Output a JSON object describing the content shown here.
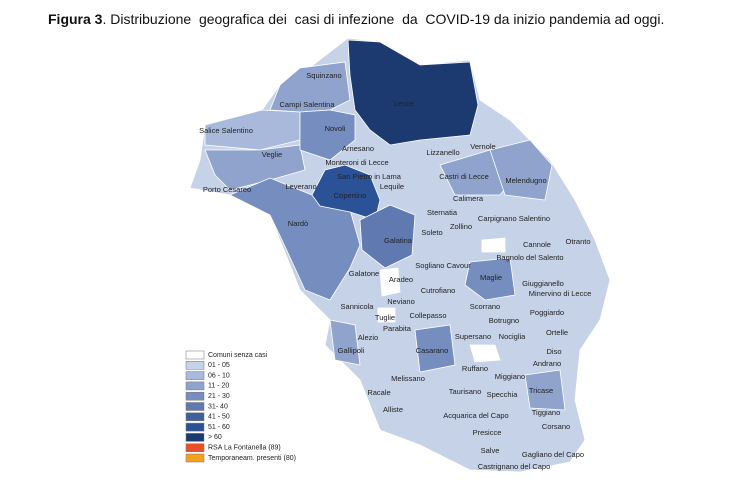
{
  "title": {
    "label": "Figura 3",
    "text": ". Distribuzione  geografica dei  casi di infezione  da  COVID-19 da inizio pandemia ad oggi."
  },
  "towns": [
    "Squinzano",
    "Campi Salentina",
    "Lecce",
    "Novoli",
    "Salice Salentino",
    "Veglie",
    "Arnesano",
    "Lizzanello",
    "Vernole",
    "Monteroni di Lecce",
    "San Pietro in Lama",
    "Porto Cesareo",
    "Leverano",
    "Lequile",
    "Castri di Lecce",
    "Melendugno",
    "Copertino",
    "Calimera",
    "Sternatia",
    "Carpignano Salentino",
    "Nardò",
    "Galatina",
    "Soleto",
    "Zollino",
    "Cannole",
    "Otranto",
    "Bagnolo del Salento",
    "Galatone",
    "Aradeo",
    "Sogliano Cavour",
    "Maglie",
    "Giuggianello",
    "Minervino di Lecce",
    "Cutrofiano",
    "Sannicola",
    "Neviano",
    "Poggiardo",
    "Scorrano",
    "Tuglie",
    "Collepasso",
    "Botrugno",
    "Parabita",
    "Ortelle",
    "Supersano",
    "Nociglia",
    "Alezio",
    "Gallipoli",
    "Casarano",
    "Diso",
    "Ruffano",
    "Andrano",
    "Miggiano",
    "Melissano",
    "Racale",
    "Taurisano",
    "Specchia",
    "Tricase",
    "Alliste",
    "Acquarica del Capo",
    "Tiggiano",
    "Corsano",
    "Presicce",
    "Salve",
    "Gagliano del Capo",
    "Castrignano del Capo"
  ],
  "legend": [
    {
      "label": "Comuni senza casi",
      "color": "#ffffff"
    },
    {
      "label": "01 - 05",
      "color": "#c6d2e8"
    },
    {
      "label": "06 - 10",
      "color": "#a9b9dc"
    },
    {
      "label": "11 - 20",
      "color": "#8fa3cd"
    },
    {
      "label": "21 - 30",
      "color": "#768dbf"
    },
    {
      "label": "31- 40",
      "color": "#6079b1"
    },
    {
      "label": "41 - 50",
      "color": "#3f5f9f"
    },
    {
      "label": "51 - 60",
      "color": "#2b5297"
    },
    {
      "label": "> 60",
      "color": "#1c3a70"
    },
    {
      "label": "RSA La Fontanella (89)",
      "color": "#e8502a"
    },
    {
      "label": "Temporaneam. presenti (80)",
      "color": "#f5a01a"
    }
  ]
}
